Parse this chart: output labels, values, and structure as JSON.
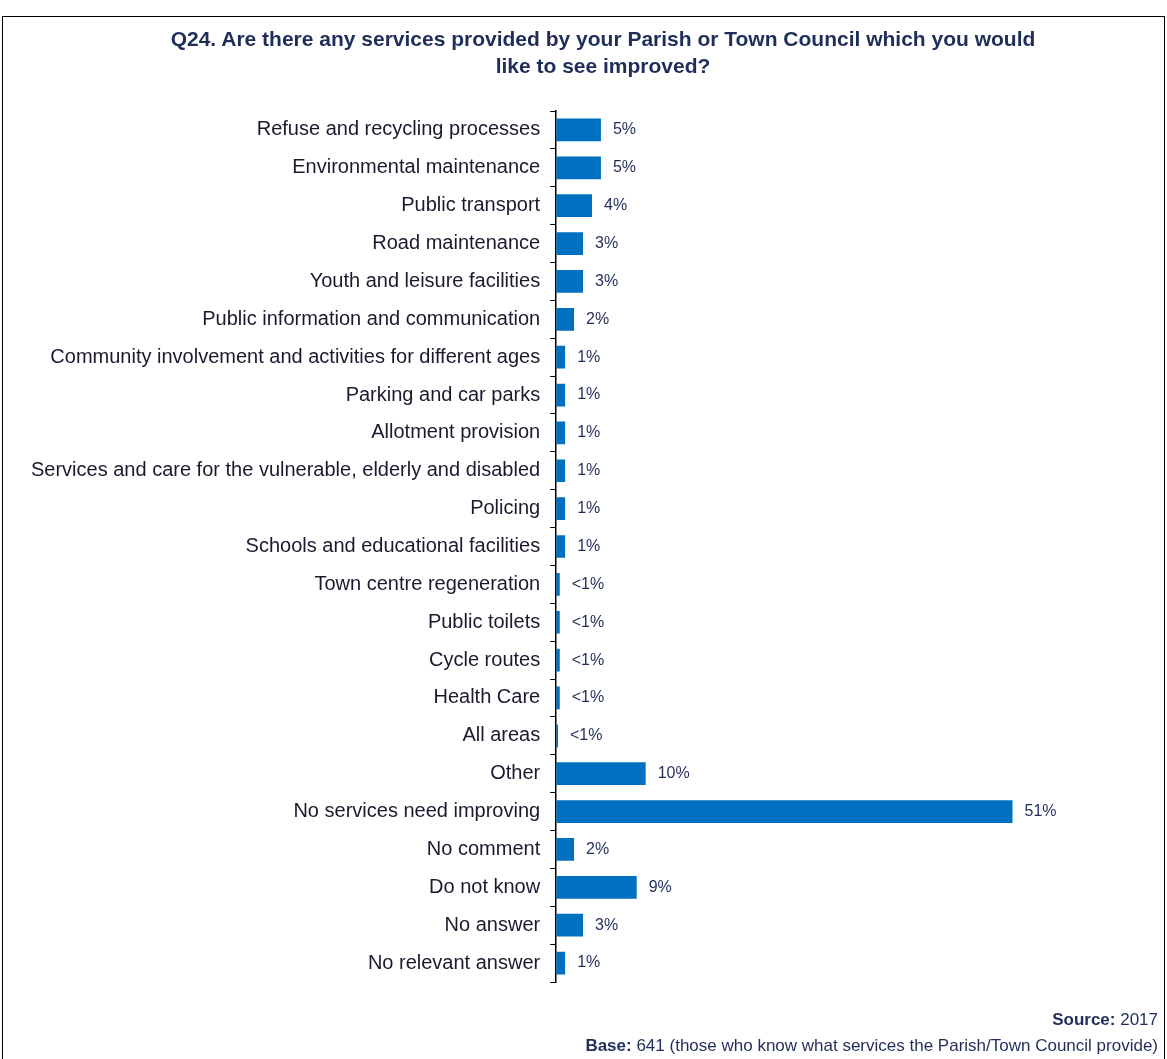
{
  "chart_data": {
    "type": "bar",
    "orientation": "horizontal",
    "title": "Q24. Are there any services provided by your Parish or Town Council which you would like to see improved?",
    "categories": [
      "Refuse and recycling processes",
      "Environmental maintenance",
      "Public transport",
      "Road maintenance",
      "Youth and leisure facilities",
      "Public information and communication",
      "Community involvement and activities for different ages",
      "Parking and car parks",
      "Allotment provision",
      "Services and care for the vulnerable, elderly and disabled",
      "Policing",
      "Schools and educational facilities",
      "Town centre regeneration",
      "Public toilets",
      "Cycle routes",
      "Health Care",
      "All areas",
      "Other",
      "No services need improving",
      "No comment",
      "Do not know",
      "No answer",
      "No relevant answer"
    ],
    "values": [
      5,
      5,
      4,
      3,
      3,
      2,
      1,
      1,
      1,
      1,
      1,
      1,
      0.4,
      0.4,
      0.4,
      0.4,
      0.2,
      10,
      51,
      2,
      9,
      3,
      1
    ],
    "value_labels": [
      "5%",
      "5%",
      "4%",
      "3%",
      "3%",
      "2%",
      "1%",
      "1%",
      "1%",
      "1%",
      "1%",
      "1%",
      "<1%",
      "<1%",
      "<1%",
      "<1%",
      "<1%",
      "10%",
      "51%",
      "2%",
      "9%",
      "3%",
      "1%"
    ],
    "color": "#0070c0",
    "annotations": [
      "Source: 2017",
      "Base: 641 (those who know what services the Parish/Town Council provide)"
    ]
  }
}
